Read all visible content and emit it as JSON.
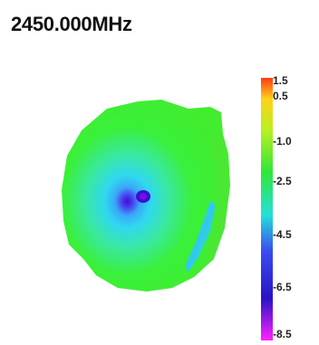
{
  "chart_data": {
    "type": "heatmap",
    "title": "2450.000MHz",
    "colorbar": {
      "ticks": [
        "1.5",
        "0.5",
        "-1.0",
        "-2.5",
        "-4.5",
        "-6.5",
        "-8.5"
      ],
      "range": [
        -8.5,
        1.5
      ],
      "colors": [
        "#ff3a10",
        "#ffd21a",
        "#b8f020",
        "#2fe63a",
        "#22e2d8",
        "#3a4cf0",
        "#2a12c8",
        "#ff22ff"
      ]
    },
    "surface": {
      "base_color": "#3af03a",
      "min_color": "#3a10d8",
      "mid_color": "#30c8f8"
    }
  }
}
